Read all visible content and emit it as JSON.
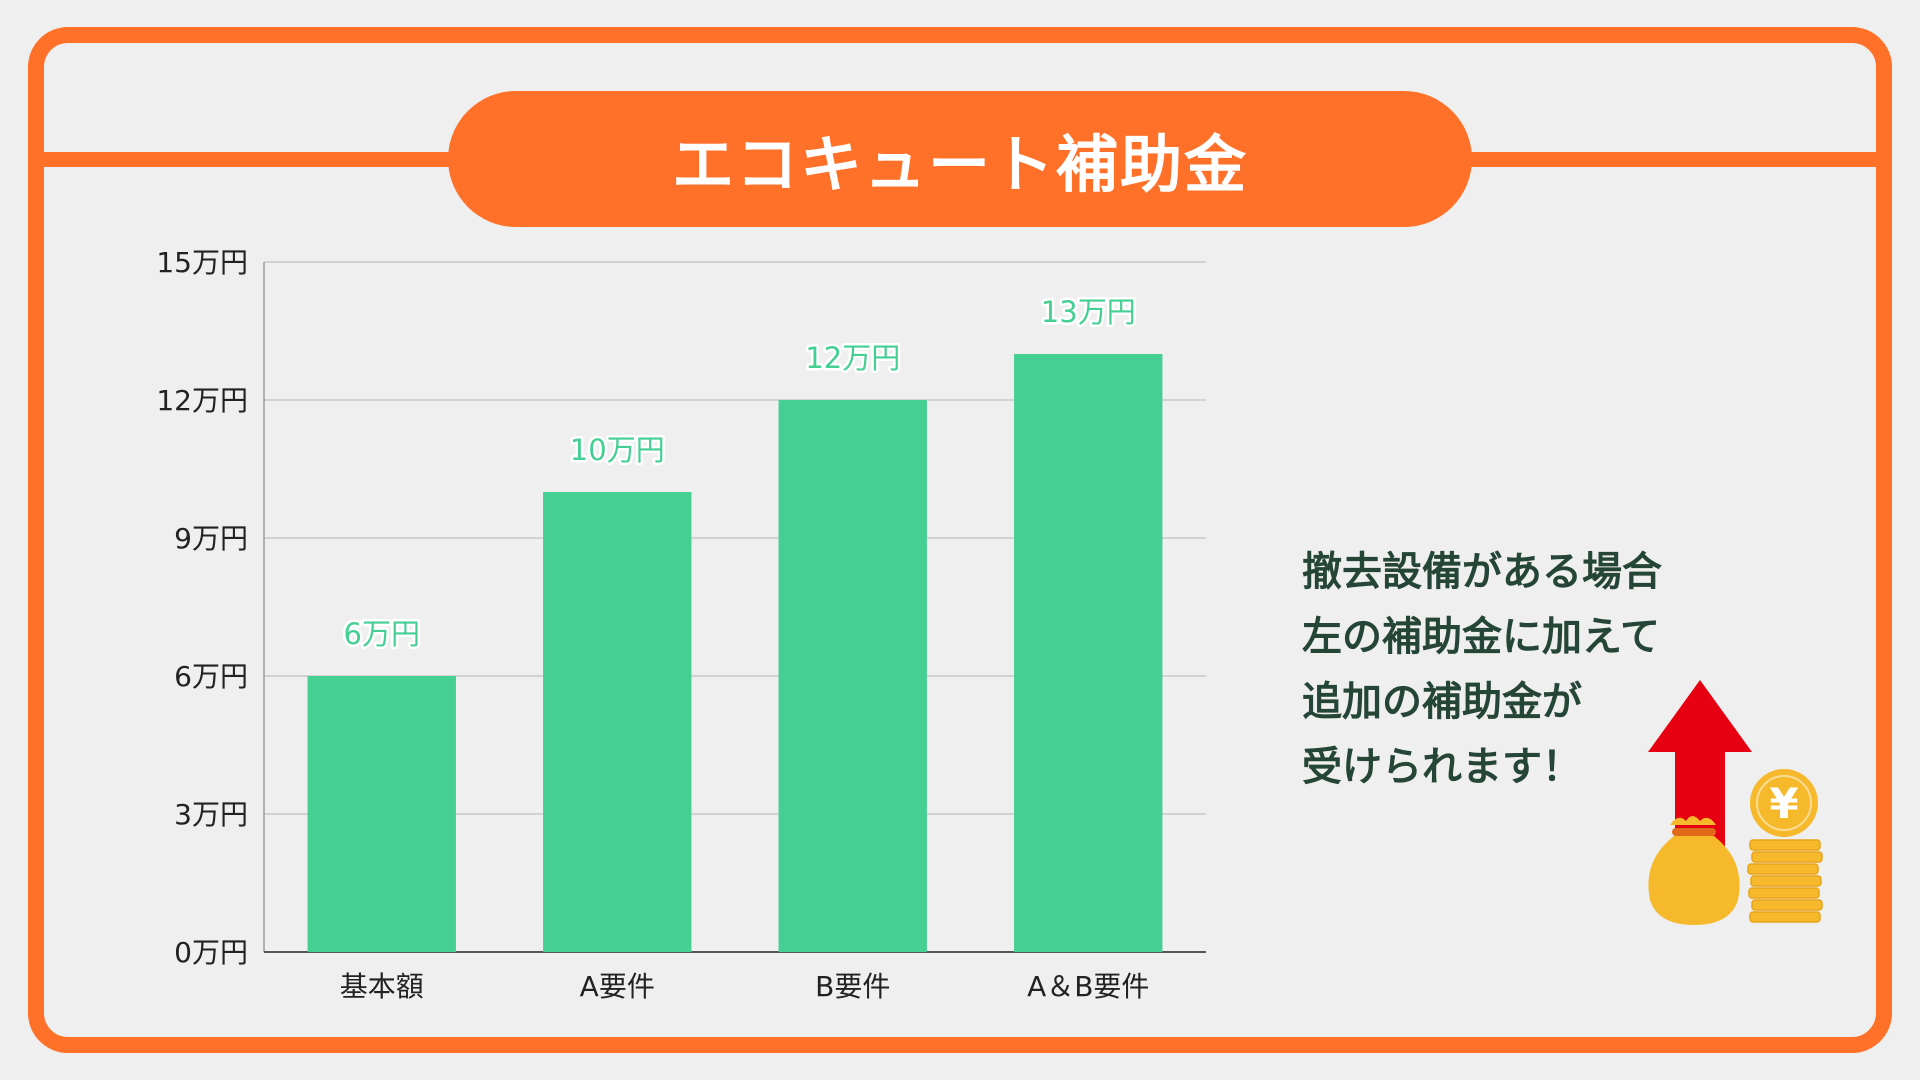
{
  "title": "エコキュート補助金",
  "note": {
    "lines": [
      "撤去設備がある場合",
      "左の補助金に加えて",
      "追加の補助金が",
      "受けられます！"
    ]
  },
  "illustration": {
    "coin_symbol": "¥",
    "colors": {
      "arrow": "#e60012",
      "coin": "#f6b92b",
      "coin_edge": "#e9a41a",
      "bag": "#f6b92b",
      "bag_tie": "#e26a1b"
    }
  },
  "colors": {
    "accent": "#ff7128",
    "bar": "#46cf93",
    "note_text": "#254536",
    "background": "#efefef"
  },
  "chart_data": {
    "type": "bar",
    "categories": [
      "基本額",
      "A要件",
      "B要件",
      "A＆B要件"
    ],
    "values": [
      6,
      10,
      12,
      13
    ],
    "data_labels": [
      "6万円",
      "10万円",
      "12万円",
      "13万円"
    ],
    "y_ticks": [
      0,
      3,
      6,
      9,
      12,
      15
    ],
    "y_tick_labels": [
      "0万円",
      "3万円",
      "6万円",
      "9万円",
      "12万円",
      "15万円"
    ],
    "ylim": [
      0,
      15
    ],
    "grid": true,
    "title": "",
    "xlabel": "",
    "ylabel": ""
  }
}
